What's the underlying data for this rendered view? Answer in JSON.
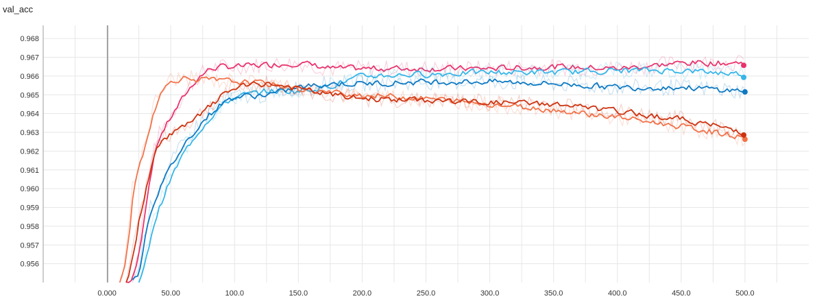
{
  "chart_data": {
    "type": "line",
    "title": "val_acc",
    "xlabel": "",
    "ylabel": "",
    "xlim": [
      -50,
      550
    ],
    "ylim": [
      0.955,
      0.9687
    ],
    "x_ticks": [
      "0.000",
      "50.00",
      "100.0",
      "150.0",
      "200.0",
      "250.0",
      "300.0",
      "350.0",
      "400.0",
      "450.0",
      "500.0"
    ],
    "y_ticks": [
      "0.956",
      "0.957",
      "0.958",
      "0.959",
      "0.960",
      "0.961",
      "0.962",
      "0.963",
      "0.964",
      "0.965",
      "0.966",
      "0.967",
      "0.968"
    ],
    "grid": true,
    "legend": "none",
    "series": [
      {
        "color": "#e8336d",
        "x": [
          15,
          20,
          25,
          30,
          35,
          40,
          50,
          60,
          70,
          80,
          90,
          100,
          125,
          150,
          175,
          200,
          250,
          300,
          350,
          400,
          450,
          500
        ],
        "y": [
          0.955,
          0.9552,
          0.9568,
          0.9595,
          0.9615,
          0.9628,
          0.9639,
          0.965,
          0.9659,
          0.9664,
          0.9665,
          0.9665,
          0.9666,
          0.9667,
          0.9664,
          0.9664,
          0.9664,
          0.9664,
          0.9665,
          0.9664,
          0.9667,
          0.9667
        ]
      },
      {
        "color": "#36b5e8",
        "x": [
          25,
          30,
          35,
          40,
          50,
          60,
          70,
          80,
          90,
          100,
          125,
          150,
          175,
          200,
          250,
          300,
          350,
          400,
          450,
          500
        ],
        "y": [
          0.955,
          0.9562,
          0.958,
          0.959,
          0.9607,
          0.962,
          0.963,
          0.9638,
          0.9645,
          0.9649,
          0.9652,
          0.9652,
          0.9655,
          0.966,
          0.9661,
          0.9662,
          0.9662,
          0.9663,
          0.9663,
          0.9661
        ]
      },
      {
        "color": "#0d79c2",
        "x": [
          20,
          25,
          30,
          35,
          40,
          50,
          60,
          70,
          80,
          90,
          100,
          125,
          150,
          175,
          200,
          250,
          300,
          350,
          400,
          450,
          500
        ],
        "y": [
          0.955,
          0.9557,
          0.958,
          0.9592,
          0.96,
          0.9613,
          0.9624,
          0.9633,
          0.964,
          0.9646,
          0.9649,
          0.965,
          0.9654,
          0.9656,
          0.9656,
          0.9657,
          0.9657,
          0.9656,
          0.9654,
          0.9654,
          0.9652
        ]
      },
      {
        "color": "#f2734a",
        "x": [
          10,
          15,
          20,
          25,
          30,
          35,
          40,
          50,
          60,
          75,
          100,
          125,
          150,
          175,
          200,
          250,
          300,
          350,
          400,
          450,
          500
        ],
        "y": [
          0.955,
          0.9565,
          0.96,
          0.9615,
          0.9625,
          0.964,
          0.965,
          0.9658,
          0.9659,
          0.9658,
          0.9657,
          0.9656,
          0.9653,
          0.9651,
          0.965,
          0.9648,
          0.9645,
          0.9642,
          0.9638,
          0.9633,
          0.9627
        ]
      },
      {
        "color": "#cc3311",
        "x": [
          15,
          20,
          25,
          30,
          35,
          40,
          50,
          60,
          70,
          80,
          90,
          100,
          125,
          150,
          175,
          200,
          250,
          300,
          350,
          400,
          450,
          500
        ],
        "y": [
          0.955,
          0.9565,
          0.9587,
          0.96,
          0.9615,
          0.9625,
          0.963,
          0.9633,
          0.9638,
          0.9644,
          0.965,
          0.9654,
          0.9656,
          0.9653,
          0.965,
          0.9648,
          0.9647,
          0.9646,
          0.9645,
          0.9641,
          0.9637,
          0.963
        ]
      }
    ]
  }
}
